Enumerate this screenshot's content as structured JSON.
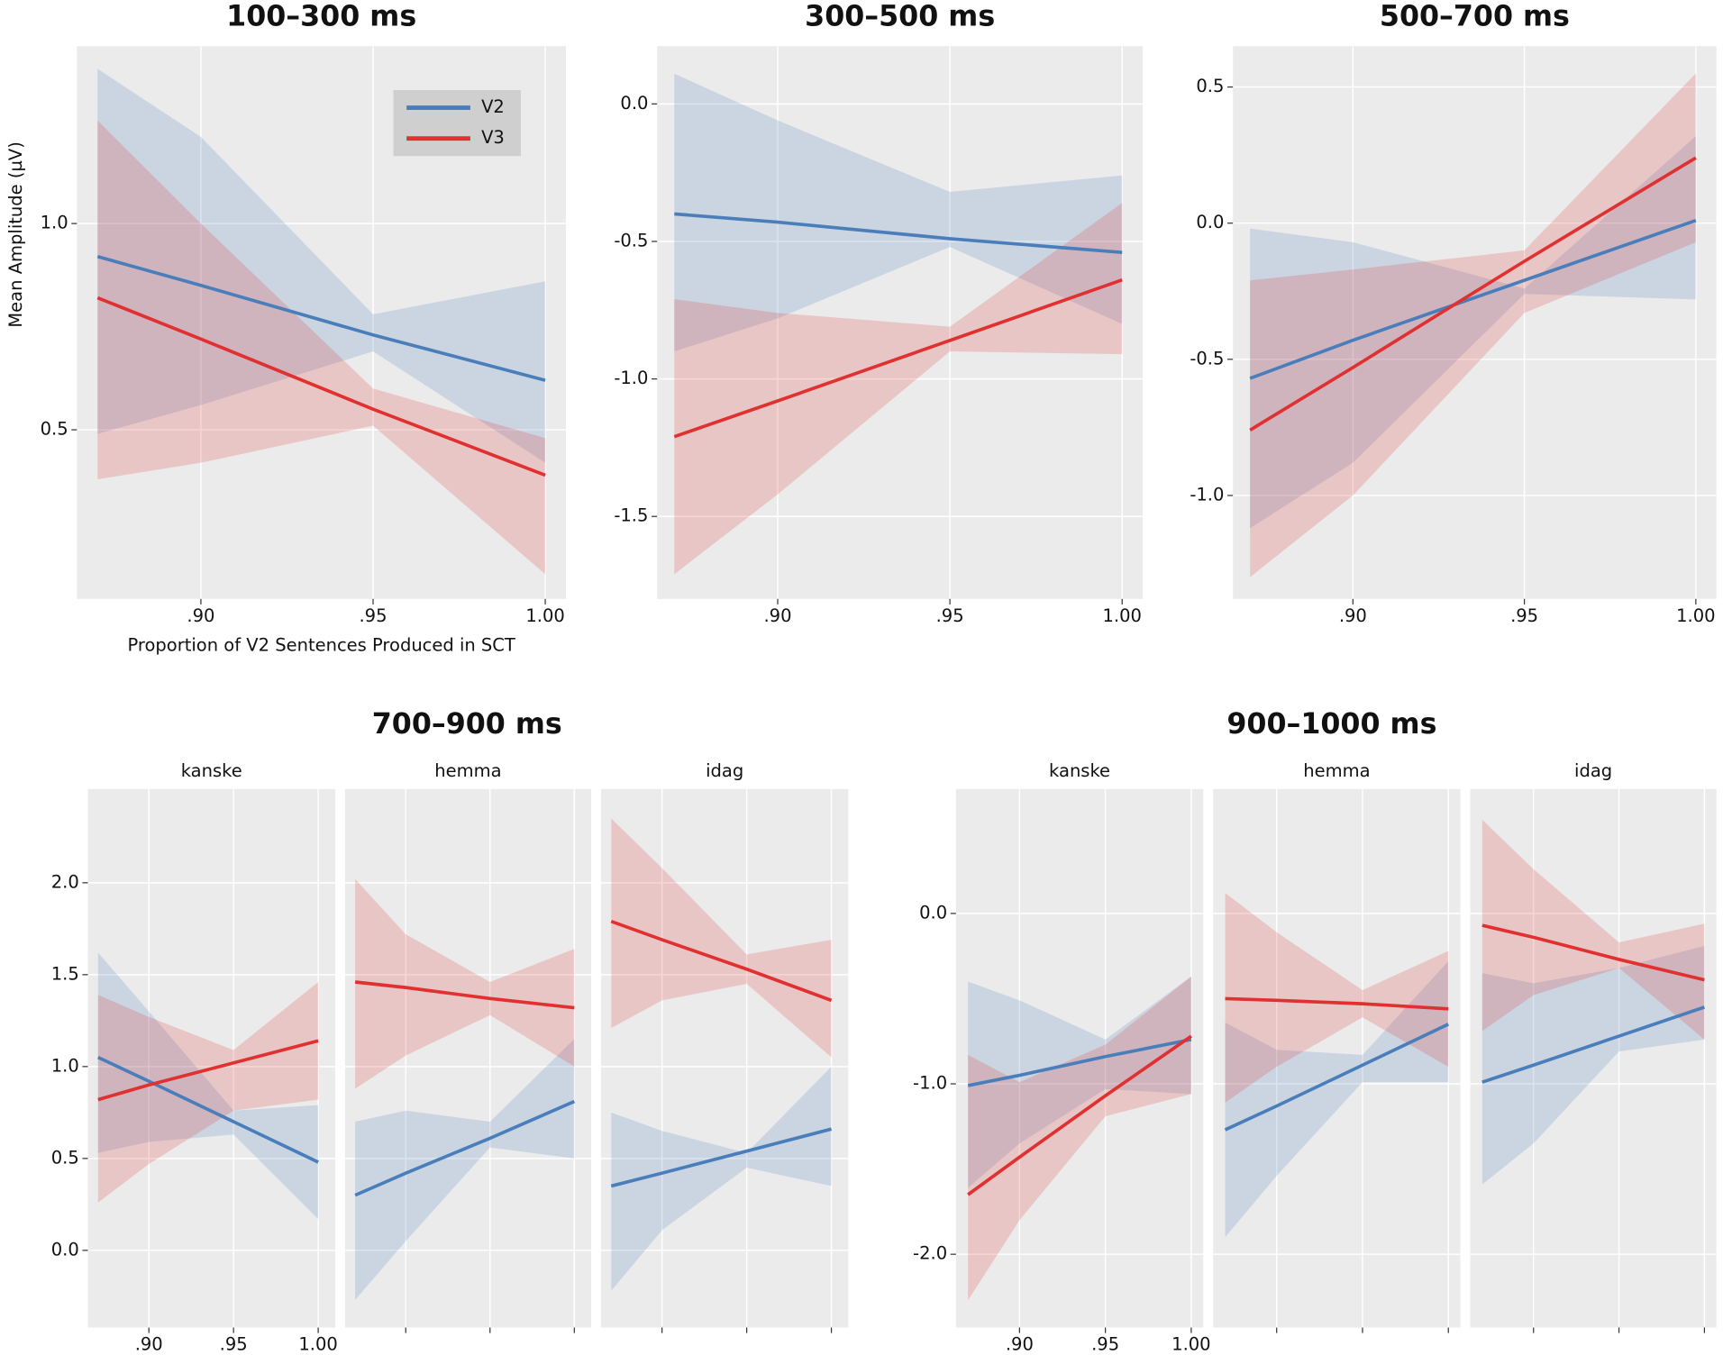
{
  "chart_data": [
    {
      "type": "line",
      "title": "100–300 ms",
      "ylabel": "Mean Amplitude (µV)",
      "xlabel": "Proportion of V2 Sentences Produced in SCT",
      "legend": "top-right",
      "x": [
        0.87,
        0.9,
        0.95,
        1.0
      ],
      "xlim": [
        0.864,
        1.006
      ],
      "xticks": [
        {
          "value": 0.9,
          "label": ".90"
        },
        {
          "value": 0.95,
          "label": ".95"
        },
        {
          "value": 1.0,
          "label": "1.00"
        }
      ],
      "ylim": [
        0.09,
        1.43
      ],
      "yticks": [
        0.5,
        {
          "value": 1.0,
          "label": "1.0"
        }
      ],
      "grid": true,
      "series": [
        {
          "name": "V2",
          "color": "#4a7ebb",
          "values": [
            0.92,
            0.85,
            0.73,
            0.62
          ],
          "lower": [
            0.49,
            0.56,
            0.69,
            0.42
          ],
          "upper": [
            1.375,
            1.21,
            0.78,
            0.86
          ]
        },
        {
          "name": "V3",
          "color": "#e03030",
          "values": [
            0.82,
            0.72,
            0.55,
            0.39
          ],
          "lower": [
            0.38,
            0.42,
            0.51,
            0.15
          ],
          "upper": [
            1.25,
            1.0,
            0.6,
            0.48
          ]
        }
      ]
    },
    {
      "type": "line",
      "title": "300–500 ms",
      "x": [
        0.87,
        0.9,
        0.95,
        1.0
      ],
      "xlim": [
        0.865,
        1.006
      ],
      "xticks": [
        {
          "value": 0.9,
          "label": ".90"
        },
        {
          "value": 0.95,
          "label": ".95"
        },
        {
          "value": 1.0,
          "label": "1.00"
        }
      ],
      "ylim": [
        -1.8,
        0.21
      ],
      "yticks": [
        -1.5,
        {
          "value": -1.0,
          "label": "-1.0"
        },
        -0.5,
        {
          "value": 0.0,
          "label": "0.0"
        }
      ],
      "grid": true,
      "series": [
        {
          "name": "V2",
          "color": "#4a7ebb",
          "values": [
            -0.4,
            -0.43,
            -0.49,
            -0.54
          ],
          "lower": [
            -0.9,
            -0.78,
            -0.52,
            -0.8
          ],
          "upper": [
            0.11,
            -0.06,
            -0.32,
            -0.26
          ]
        },
        {
          "name": "V3",
          "color": "#e03030",
          "values": [
            -1.21,
            -1.08,
            -0.86,
            -0.64
          ],
          "lower": [
            -1.71,
            -1.42,
            -0.9,
            -0.91
          ],
          "upper": [
            -0.71,
            -0.76,
            -0.81,
            -0.36
          ]
        }
      ]
    },
    {
      "type": "line",
      "title": "500–700 ms",
      "x": [
        0.87,
        0.9,
        0.95,
        1.0
      ],
      "xlim": [
        0.865,
        1.006
      ],
      "xticks": [
        {
          "value": 0.9,
          "label": ".90"
        },
        {
          "value": 0.95,
          "label": ".95"
        },
        {
          "value": 1.0,
          "label": "1.00"
        }
      ],
      "ylim": [
        -1.38,
        0.65
      ],
      "yticks": [
        {
          "value": -1.0,
          "label": "-1.0"
        },
        -0.5,
        {
          "value": 0.0,
          "label": "0.0"
        },
        0.5
      ],
      "grid": true,
      "series": [
        {
          "name": "V2",
          "color": "#4a7ebb",
          "values": [
            -0.57,
            -0.43,
            -0.21,
            0.01
          ],
          "lower": [
            -1.12,
            -0.88,
            -0.26,
            -0.28
          ],
          "upper": [
            -0.02,
            -0.07,
            -0.24,
            0.32
          ]
        },
        {
          "name": "V3",
          "color": "#e03030",
          "values": [
            -0.76,
            -0.53,
            -0.14,
            0.24
          ],
          "lower": [
            -1.3,
            -1.0,
            -0.33,
            -0.07
          ],
          "upper": [
            -0.21,
            -0.17,
            -0.1,
            0.55
          ]
        }
      ]
    },
    {
      "type": "line",
      "title": "700–900 ms",
      "x": [
        0.87,
        0.9,
        0.95,
        1.0
      ],
      "xlim": [
        0.864,
        1.01
      ],
      "xticks": [
        {
          "value": 0.9,
          "label": ".90"
        },
        {
          "value": 0.95,
          "label": ".95"
        },
        {
          "value": 1.0,
          "label": "1.00"
        }
      ],
      "ylim": [
        -0.42,
        2.51
      ],
      "yticks": [
        {
          "value": 0.0,
          "label": "0.0"
        },
        0.5,
        {
          "value": 1.0,
          "label": "1.0"
        },
        1.5,
        {
          "value": 2.0,
          "label": "2.0"
        }
      ],
      "grid": true,
      "facets": [
        {
          "label": "kanske",
          "series": [
            {
              "name": "V2",
              "color": "#4a7ebb",
              "values": [
                1.05,
                0.92,
                0.7,
                0.48
              ],
              "lower": [
                0.53,
                0.59,
                0.63,
                0.17
              ],
              "upper": [
                1.62,
                1.3,
                0.76,
                0.79
              ]
            },
            {
              "name": "V3",
              "color": "#e03030",
              "values": [
                0.82,
                0.9,
                1.02,
                1.14
              ],
              "lower": [
                0.26,
                0.47,
                0.76,
                0.82
              ],
              "upper": [
                1.39,
                1.27,
                1.09,
                1.46
              ]
            }
          ]
        },
        {
          "label": "hemma",
          "series": [
            {
              "name": "V2",
              "color": "#4a7ebb",
              "values": [
                0.3,
                0.42,
                0.61,
                0.81
              ],
              "lower": [
                -0.27,
                0.05,
                0.56,
                0.5
              ],
              "upper": [
                0.7,
                0.76,
                0.7,
                1.15
              ]
            },
            {
              "name": "V3",
              "color": "#e03030",
              "values": [
                1.46,
                1.43,
                1.37,
                1.32
              ],
              "lower": [
                0.88,
                1.06,
                1.28,
                1.0
              ],
              "upper": [
                2.02,
                1.72,
                1.46,
                1.64
              ]
            }
          ]
        },
        {
          "label": "idag",
          "series": [
            {
              "name": "V2",
              "color": "#4a7ebb",
              "values": [
                0.35,
                0.42,
                0.54,
                0.66
              ],
              "lower": [
                -0.22,
                0.11,
                0.45,
                0.35
              ],
              "upper": [
                0.75,
                0.65,
                0.53,
                1.0
              ]
            },
            {
              "name": "V3",
              "color": "#e03030",
              "values": [
                1.79,
                1.69,
                1.53,
                1.36
              ],
              "lower": [
                1.21,
                1.36,
                1.45,
                1.05
              ],
              "upper": [
                2.35,
                2.08,
                1.61,
                1.69
              ]
            }
          ]
        }
      ]
    },
    {
      "type": "line",
      "title": "900–1000 ms",
      "x": [
        0.87,
        0.9,
        0.95,
        1.0
      ],
      "xlim": [
        0.863,
        1.007
      ],
      "xticks": [
        {
          "value": 0.9,
          "label": ".90"
        },
        {
          "value": 0.95,
          "label": ".95"
        },
        {
          "value": 1.0,
          "label": "1.00"
        }
      ],
      "ylim": [
        -2.43,
        0.73
      ],
      "yticks": [
        {
          "value": -2.0,
          "label": "-2.0"
        },
        {
          "value": -1.0,
          "label": "-1.0"
        },
        {
          "value": 0.0,
          "label": "0.0"
        }
      ],
      "grid": true,
      "facets": [
        {
          "label": "kanske",
          "series": [
            {
              "name": "V2",
              "color": "#4a7ebb",
              "values": [
                -1.01,
                -0.95,
                -0.84,
                -0.74
              ],
              "lower": [
                -1.61,
                -1.35,
                -1.03,
                -1.06
              ],
              "upper": [
                -0.4,
                -0.51,
                -0.74,
                -0.37
              ]
            },
            {
              "name": "V3",
              "color": "#e03030",
              "values": [
                -1.65,
                -1.43,
                -1.07,
                -0.72
              ],
              "lower": [
                -2.27,
                -1.8,
                -1.19,
                -1.06
              ],
              "upper": [
                -0.83,
                -0.99,
                -0.77,
                -0.37
              ]
            }
          ]
        },
        {
          "label": "hemma",
          "series": [
            {
              "name": "V2",
              "color": "#4a7ebb",
              "values": [
                -1.27,
                -1.13,
                -0.89,
                -0.65
              ],
              "lower": [
                -1.9,
                -1.54,
                -0.99,
                -0.99
              ],
              "upper": [
                -0.64,
                -0.8,
                -0.83,
                -0.28
              ]
            },
            {
              "name": "V3",
              "color": "#e03030",
              "values": [
                -0.5,
                -0.51,
                -0.53,
                -0.56
              ],
              "lower": [
                -1.11,
                -0.9,
                -0.61,
                -0.9
              ],
              "upper": [
                0.12,
                -0.11,
                -0.45,
                -0.22
              ]
            }
          ]
        },
        {
          "label": "idag",
          "series": [
            {
              "name": "V2",
              "color": "#4a7ebb",
              "values": [
                -0.99,
                -0.89,
                -0.72,
                -0.55
              ],
              "lower": [
                -1.59,
                -1.35,
                -0.81,
                -0.74
              ],
              "upper": [
                -0.35,
                -0.41,
                -0.32,
                -0.19
              ]
            },
            {
              "name": "V3",
              "color": "#e03030",
              "values": [
                -0.07,
                -0.14,
                -0.27,
                -0.39
              ],
              "lower": [
                -0.69,
                -0.48,
                -0.32,
                -0.74
              ],
              "upper": [
                0.55,
                0.26,
                -0.17,
                -0.06
              ]
            }
          ]
        }
      ]
    }
  ]
}
